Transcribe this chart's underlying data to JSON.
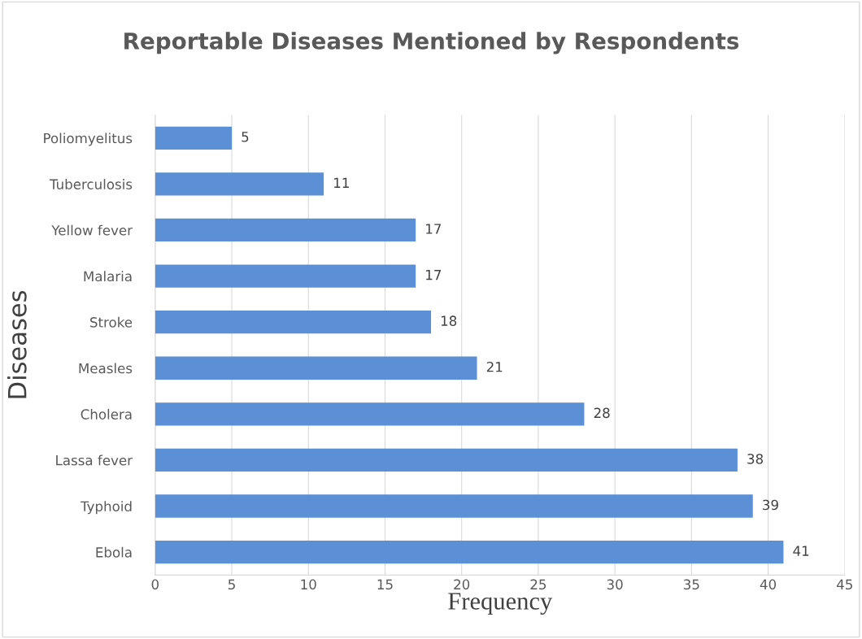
{
  "chart_data": {
    "type": "bar",
    "orientation": "horizontal",
    "title": "Reportable Diseases Mentioned by Respondents",
    "xlabel": "Frequency",
    "ylabel": "Diseases",
    "categories": [
      "Poliomyelitus",
      "Tuberculosis",
      "Yellow fever",
      "Malaria",
      "Stroke",
      "Measles",
      "Cholera",
      "Lassa fever",
      "Typhoid",
      "Ebola"
    ],
    "values": [
      5,
      11,
      17,
      17,
      18,
      21,
      28,
      38,
      39,
      41
    ],
    "color": "#5b8fd6",
    "xlim": [
      0,
      45
    ],
    "xticks": [
      0,
      5,
      10,
      15,
      20,
      25,
      30,
      35,
      40,
      45
    ],
    "grid": "x",
    "data_labels": true
  }
}
